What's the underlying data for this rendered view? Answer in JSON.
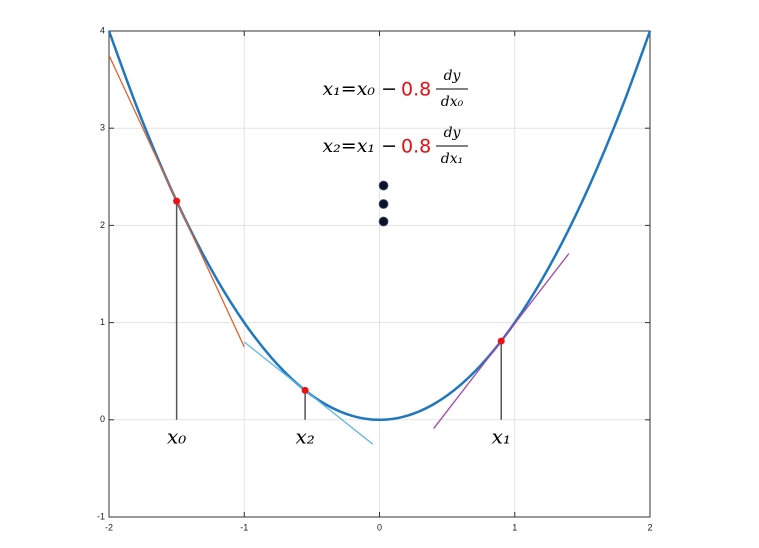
{
  "chart_data": {
    "type": "line",
    "xlim": [
      -2,
      2
    ],
    "ylim": [
      -1,
      4
    ],
    "xticks": [
      -2,
      -1,
      0,
      1,
      2
    ],
    "yticks": [
      -1,
      0,
      1,
      2,
      3,
      4
    ],
    "grid": true,
    "series": [
      {
        "color": "#1f77c0",
        "x": [
          -2,
          -1.8,
          -1.6,
          -1.4,
          -1.2,
          -1,
          -0.8,
          -0.6,
          -0.4,
          -0.2,
          0,
          0.2,
          0.4,
          0.6,
          0.8,
          1,
          1.2,
          1.4,
          1.6,
          1.8,
          2
        ],
        "values": [
          4,
          3.24,
          2.56,
          1.96,
          1.44,
          1,
          0.64,
          0.36,
          0.16,
          0.04,
          0,
          0.04,
          0.16,
          0.36,
          0.64,
          1,
          1.44,
          1.96,
          2.56,
          3.24,
          4
        ]
      },
      {
        "color": "#e0622a",
        "x": [
          -2,
          -1
        ],
        "values": [
          3.75,
          0.75
        ]
      },
      {
        "color": "#5bb6e6",
        "x": [
          -1,
          -0.05
        ],
        "values": [
          0.8,
          -0.25
        ]
      },
      {
        "color": "#a347a8",
        "x": [
          0.4,
          1.4
        ],
        "values": [
          -0.09,
          1.71
        ]
      },
      {
        "color": "#ee1111",
        "marker": "dot",
        "drop_lines": true,
        "x": [
          -1.5,
          -0.55,
          0.9
        ],
        "values": [
          2.25,
          0.3025,
          0.81
        ]
      },
      {
        "color": "#0a1230",
        "marker": "dot",
        "x": [
          0.03,
          0.03,
          0.03
        ],
        "values": [
          2.41,
          2.22,
          2.04
        ]
      }
    ],
    "annotations": [
      "x₀",
      "x₂",
      "x₁"
    ],
    "formulas": [
      {
        "lhs": "x₁=x₀ −",
        "coef": "0.8",
        "num": "dy",
        "den": "dx₀"
      },
      {
        "lhs": "x₂=x₁ −",
        "coef": "0.8",
        "num": "dy",
        "den": "dx₁"
      }
    ]
  }
}
